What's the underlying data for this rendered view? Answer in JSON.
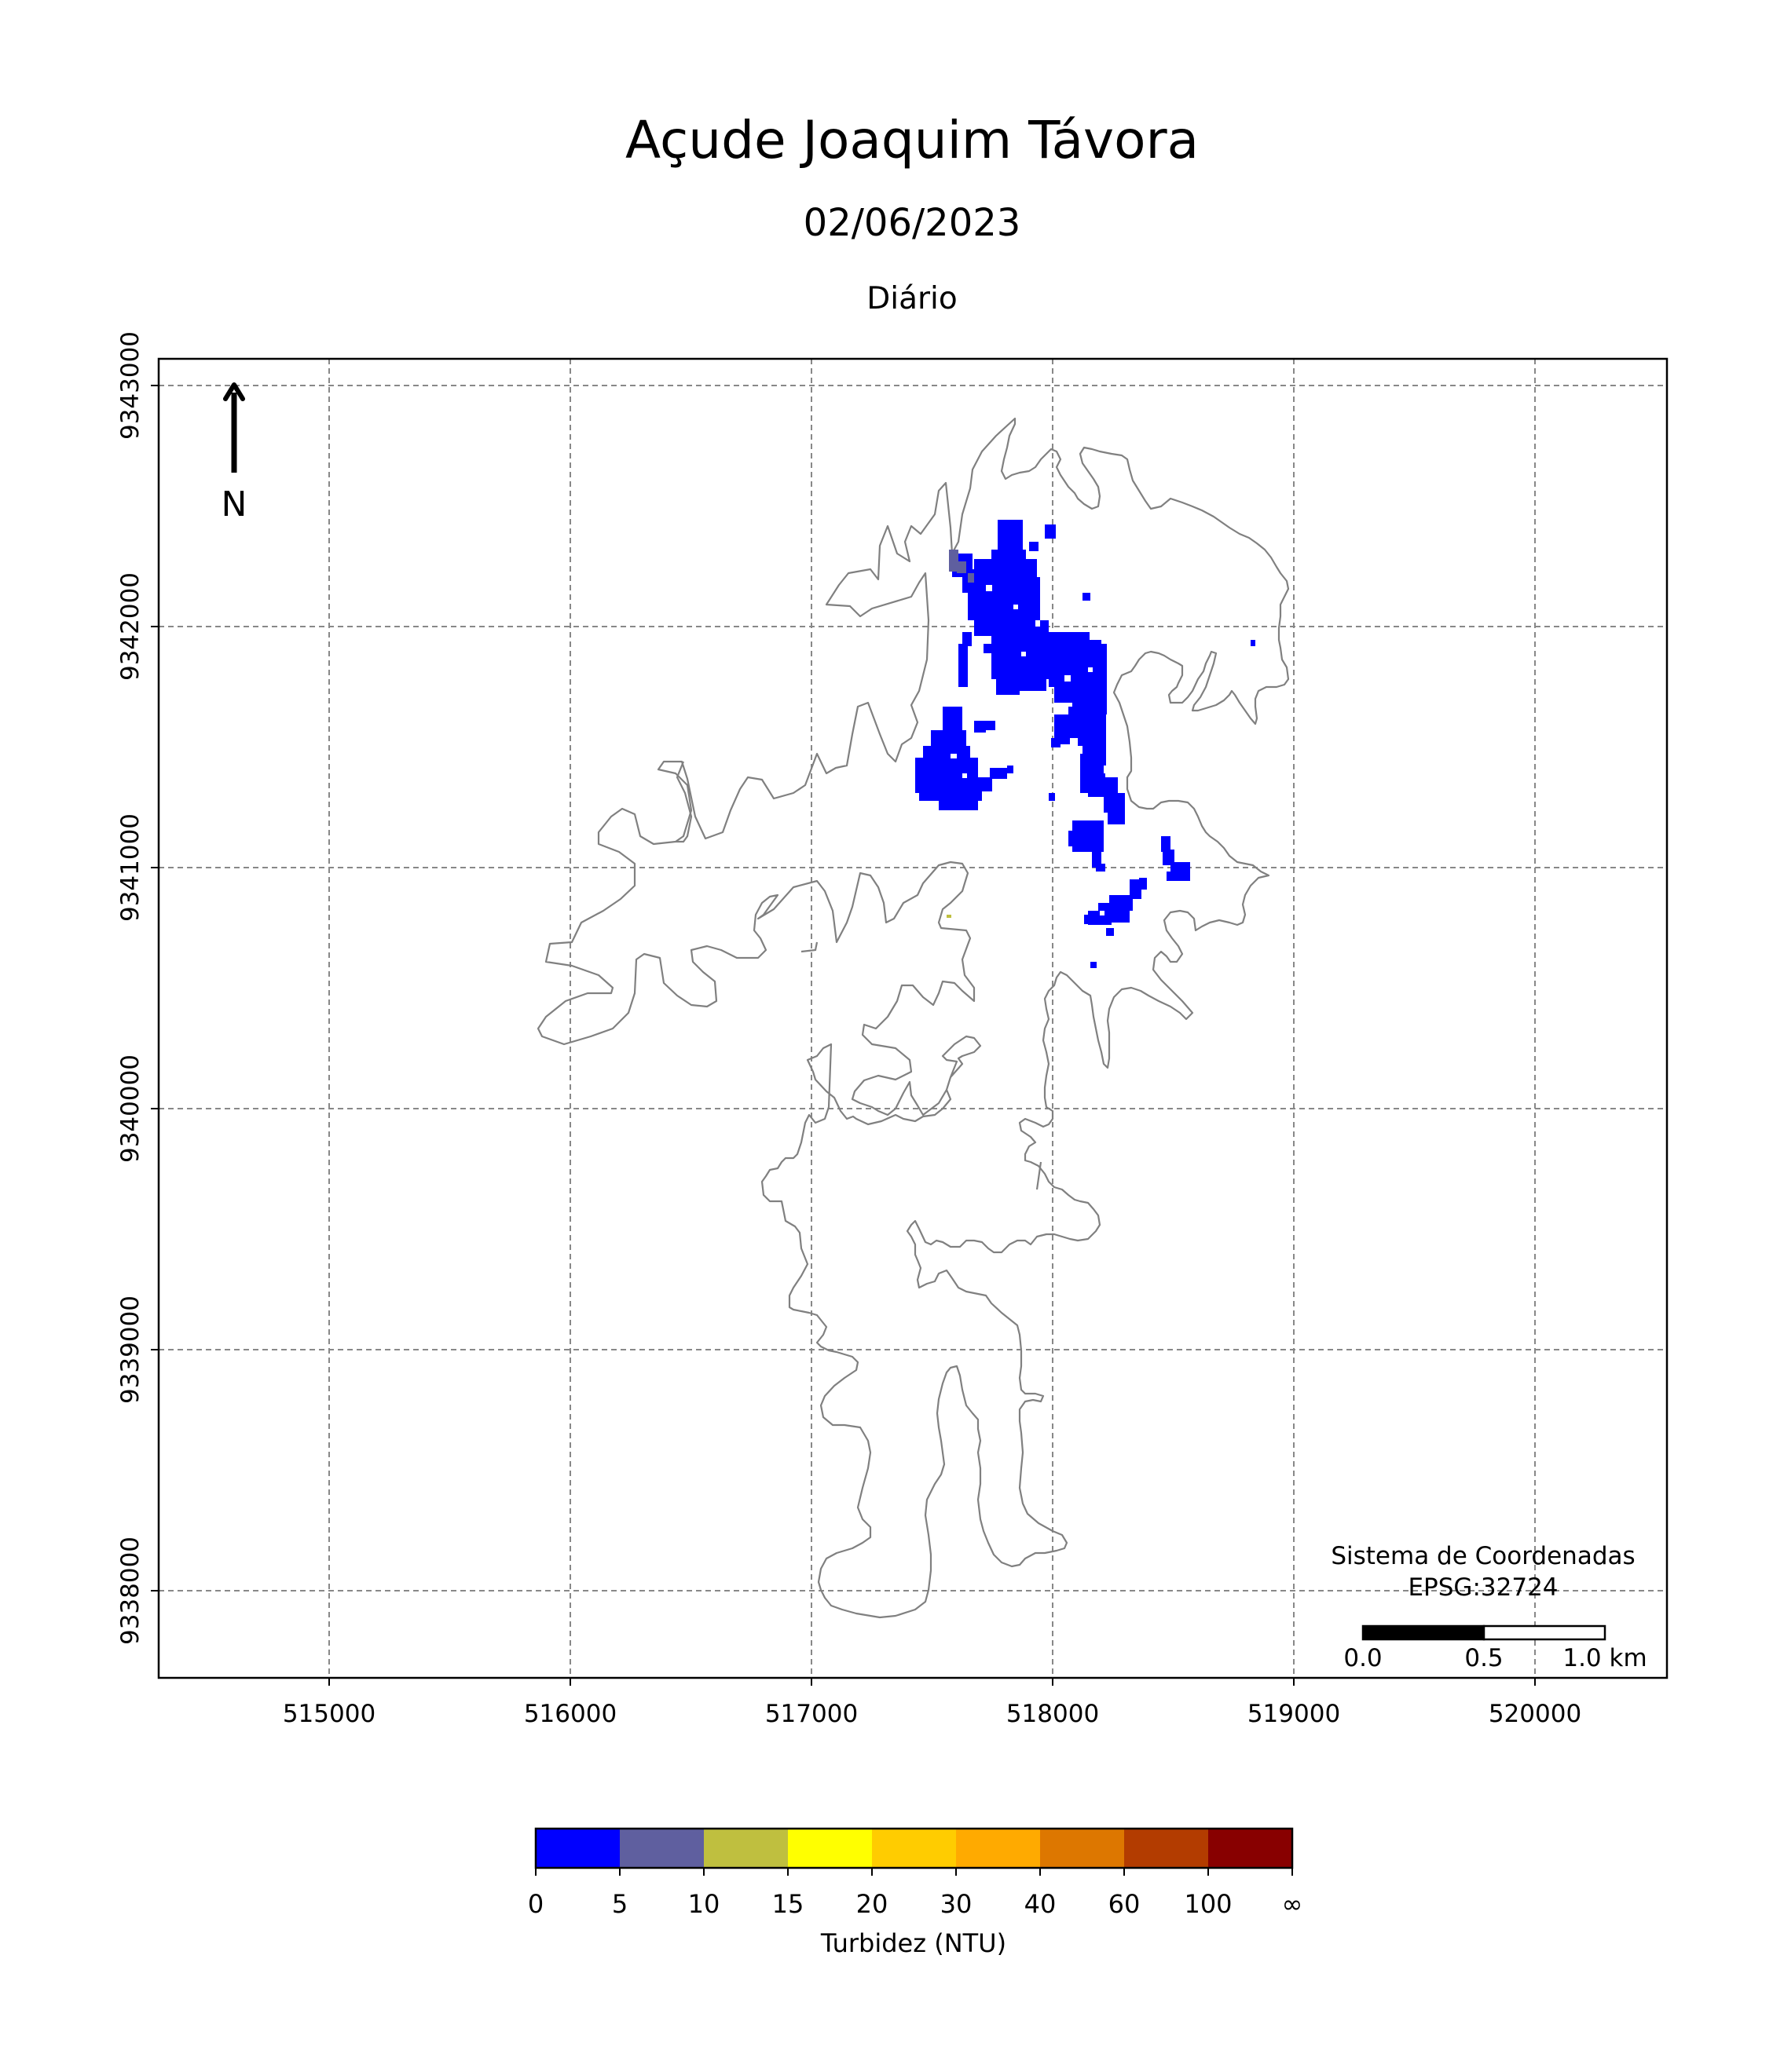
{
  "title": "Açude Joaquim Távora",
  "date": "02/06/2023",
  "subtitle": "Diário",
  "north_label": "N",
  "crs_line1": "Sistema de Coordenadas",
  "crs_line2": "EPSG:32724",
  "scale_bar": {
    "labels": [
      "0.0",
      "0.5",
      "1.0 km"
    ]
  },
  "axes": {
    "x_ticks": [
      "515000",
      "516000",
      "517000",
      "518000",
      "519000",
      "520000"
    ],
    "y_ticks": [
      "9343000",
      "9342000",
      "9341000",
      "9340000",
      "9339000",
      "9338000"
    ],
    "x_range": [
      514300,
      520550
    ],
    "y_range": [
      9337700,
      9343110
    ],
    "grid": true
  },
  "colorbar": {
    "label": "Turbidez (NTU)",
    "ticks": [
      "0",
      "5",
      "10",
      "15",
      "20",
      "30",
      "40",
      "60",
      "100",
      "∞"
    ],
    "colors": [
      "#0000ff",
      "#5f5f9f",
      "#bfbf3f",
      "#ffff00",
      "#ffcc00",
      "#ffaa00",
      "#dd7700",
      "#b33c00",
      "#880000"
    ]
  },
  "colors": {
    "outline": "#808080",
    "grid": "#888888",
    "water_low": "#0000ff",
    "water_mid": "#5f5f9f"
  }
}
